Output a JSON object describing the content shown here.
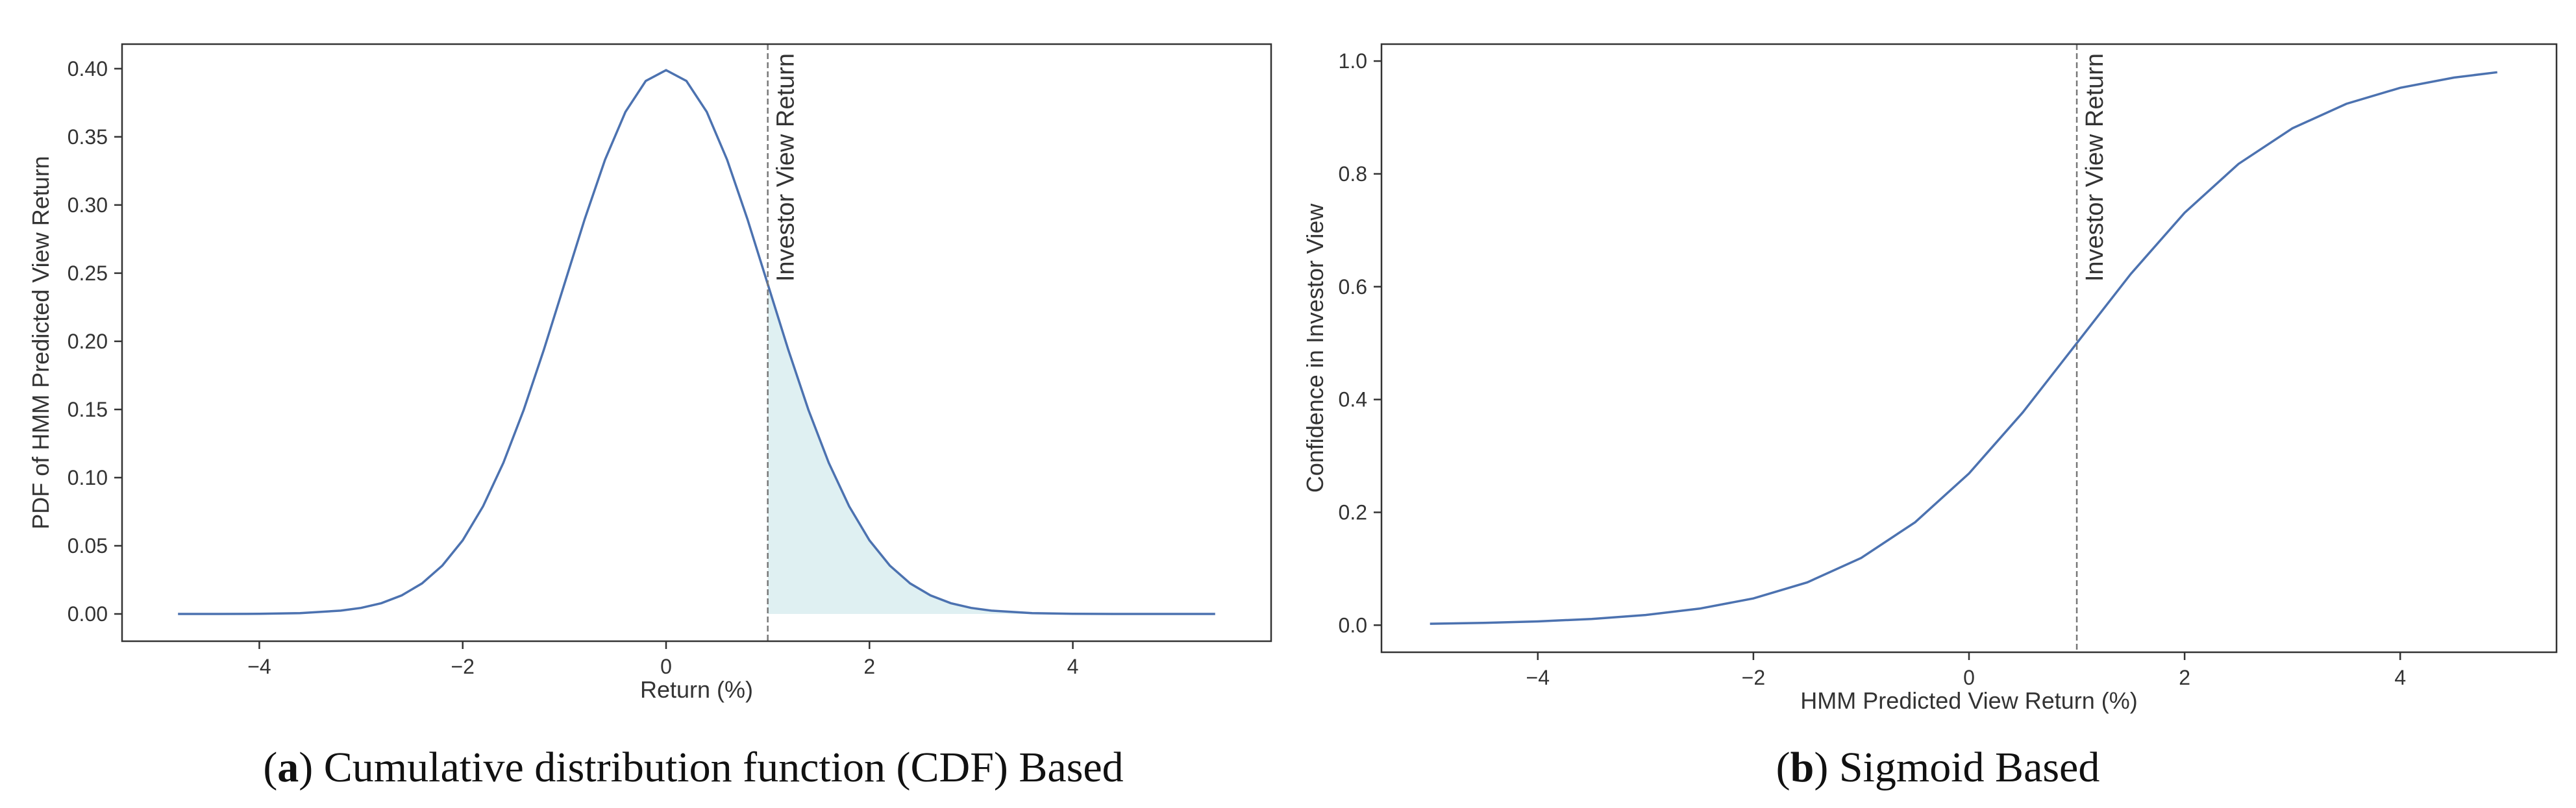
{
  "colors": {
    "line": "#4c72b0",
    "fill": "#dff0f2",
    "vline": "#777777",
    "axis": "#333333"
  },
  "chart_data": [
    {
      "id": "a",
      "type": "line",
      "title": "",
      "xlabel": "Return (%)",
      "ylabel": "PDF of HMM Predicted View Return",
      "xlim": [
        -5.35,
        5.95
      ],
      "ylim": [
        -0.02,
        0.418
      ],
      "xticks": [
        -4,
        -2,
        0,
        2,
        4
      ],
      "xtick_labels": [
        "−4",
        "−2",
        "0",
        "2",
        "4"
      ],
      "yticks": [
        0.0,
        0.05,
        0.1,
        0.15,
        0.2,
        0.25,
        0.3,
        0.35,
        0.4
      ],
      "ytick_labels": [
        "0.00",
        "0.05",
        "0.10",
        "0.15",
        "0.20",
        "0.25",
        "0.30",
        "0.35",
        "0.40"
      ],
      "series": [
        {
          "name": "PDF",
          "x": [
            -4.8,
            -4.4,
            -4.0,
            -3.6,
            -3.2,
            -3.0,
            -2.8,
            -2.6,
            -2.4,
            -2.2,
            -2.0,
            -1.8,
            -1.6,
            -1.4,
            -1.2,
            -1.0,
            -0.8,
            -0.6,
            -0.4,
            -0.2,
            0.0,
            0.2,
            0.4,
            0.6,
            0.8,
            1.0,
            1.2,
            1.4,
            1.6,
            1.8,
            2.0,
            2.2,
            2.4,
            2.6,
            2.8,
            3.0,
            3.2,
            3.6,
            4.0,
            4.4,
            4.8,
            5.4
          ],
          "y": [
            0.0,
            0.0,
            0.0001,
            0.0006,
            0.0024,
            0.0044,
            0.0079,
            0.0136,
            0.0224,
            0.0355,
            0.054,
            0.079,
            0.1109,
            0.1497,
            0.1942,
            0.242,
            0.2897,
            0.3332,
            0.3683,
            0.391,
            0.3989,
            0.391,
            0.3683,
            0.3332,
            0.2897,
            0.242,
            0.1942,
            0.1497,
            0.1109,
            0.079,
            0.054,
            0.0355,
            0.0224,
            0.0136,
            0.0079,
            0.0044,
            0.0024,
            0.0006,
            0.0001,
            0.0,
            0.0,
            0.0
          ]
        }
      ],
      "shade_from_x": 1.0,
      "vline": {
        "x": 1.0,
        "label": "Investor View Return"
      }
    },
    {
      "id": "b",
      "type": "line",
      "title": "",
      "xlabel": "HMM Predicted View Return (%)",
      "ylabel": "Confidence in Investor View",
      "xlim": [
        -5.45,
        5.45
      ],
      "ylim": [
        -0.048,
        1.03
      ],
      "xticks": [
        -4,
        -2,
        0,
        2,
        4
      ],
      "xtick_labels": [
        "−4",
        "−2",
        "0",
        "2",
        "4"
      ],
      "yticks": [
        0.0,
        0.2,
        0.4,
        0.6,
        0.8,
        1.0
      ],
      "ytick_labels": [
        "0.0",
        "0.2",
        "0.4",
        "0.6",
        "0.8",
        "1.0"
      ],
      "series": [
        {
          "name": "Sigmoid",
          "x": [
            -5.0,
            -4.5,
            -4.0,
            -3.5,
            -3.0,
            -2.5,
            -2.0,
            -1.5,
            -1.0,
            -0.5,
            0.0,
            0.5,
            1.0,
            1.5,
            2.0,
            2.5,
            3.0,
            3.5,
            4.0,
            4.5,
            4.9
          ],
          "y": [
            0.0025,
            0.0041,
            0.0067,
            0.011,
            0.018,
            0.0293,
            0.0474,
            0.0759,
            0.1192,
            0.1824,
            0.2689,
            0.3775,
            0.5,
            0.6225,
            0.7311,
            0.8176,
            0.8808,
            0.9241,
            0.9526,
            0.9707,
            0.9802
          ]
        }
      ],
      "vline": {
        "x": 1.0,
        "label": "Investor View Return"
      }
    }
  ],
  "captions": [
    {
      "letter": "a",
      "text": " Cumulative distribution function (CDF) Based"
    },
    {
      "letter": "b",
      "text": " Sigmoid Based"
    }
  ]
}
